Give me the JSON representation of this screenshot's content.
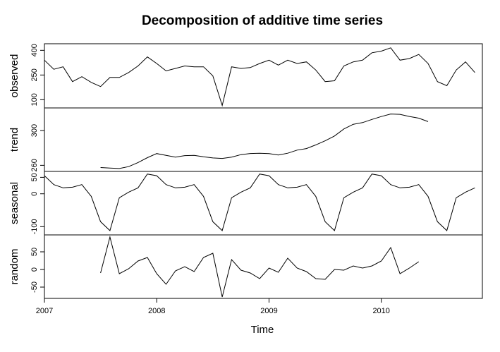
{
  "chart_data": {
    "type": "line",
    "title": "Decomposition of additive time series",
    "xlabel": "Time",
    "xlim": [
      2007,
      2010.9
    ],
    "grid": false,
    "legend": "none",
    "x_ticks": [
      2007,
      2008,
      2009,
      2010
    ],
    "x_tick_labels": [
      "2007",
      "2008",
      "2009",
      "2010"
    ],
    "x": [
      2007.0,
      2007.0833,
      2007.1667,
      2007.25,
      2007.3333,
      2007.4167,
      2007.5,
      2007.5833,
      2007.6667,
      2007.75,
      2007.8333,
      2007.9167,
      2008.0,
      2008.0833,
      2008.1667,
      2008.25,
      2008.3333,
      2008.4167,
      2008.5,
      2008.5833,
      2008.6667,
      2008.75,
      2008.8333,
      2008.9167,
      2009.0,
      2009.0833,
      2009.1667,
      2009.25,
      2009.3333,
      2009.4167,
      2009.5,
      2009.5833,
      2009.6667,
      2009.75,
      2009.8333,
      2009.9167,
      2010.0,
      2010.0833,
      2010.1667,
      2010.25,
      2010.3333,
      2010.4167,
      2010.5,
      2010.5833,
      2010.6667,
      2010.75,
      2010.8333
    ],
    "panels": [
      {
        "name": "observed",
        "ylim": [
          50,
          440
        ],
        "y_ticks": [
          100,
          250,
          400
        ],
        "y_tick_labels": [
          "100",
          "250",
          "400"
        ],
        "values": [
          340,
          285,
          300,
          210,
          240,
          205,
          180,
          235,
          235,
          265,
          305,
          360,
          320,
          275,
          290,
          305,
          300,
          300,
          245,
          65,
          300,
          290,
          295,
          320,
          340,
          310,
          340,
          320,
          330,
          280,
          210,
          215,
          305,
          330,
          340,
          385,
          395,
          415,
          340,
          350,
          375,
          320,
          210,
          185,
          280,
          330,
          265
        ]
      },
      {
        "name": "trend",
        "ylim": [
          253,
          326
        ],
        "y_ticks": [
          260,
          300
        ],
        "y_tick_labels": [
          "260",
          "300"
        ],
        "values": [
          null,
          null,
          null,
          null,
          null,
          null,
          257.5,
          256.8,
          256.3,
          258.5,
          263.2,
          268.8,
          273.5,
          271.5,
          269.5,
          271.2,
          271.5,
          269.8,
          268.5,
          267.9,
          269.5,
          272.3,
          273.6,
          273.9,
          273.4,
          271.8,
          273.9,
          277.5,
          279.3,
          283.5,
          288.2,
          293.7,
          301.8,
          307.2,
          309.1,
          312.8,
          316.1,
          319.0,
          318.6,
          316.2,
          314.2,
          310.3,
          null,
          null,
          null,
          null,
          null
        ]
      },
      {
        "name": "seasonal",
        "ylim": [
          -125,
          68
        ],
        "y_ticks": [
          -100,
          0,
          50
        ],
        "y_tick_labels": [
          "-100",
          "0",
          "50"
        ],
        "values": [
          55,
          28,
          18,
          20,
          28,
          -8,
          -85,
          -112,
          -12,
          5,
          18,
          60,
          55,
          28,
          18,
          20,
          28,
          -8,
          -85,
          -112,
          -12,
          5,
          18,
          60,
          55,
          28,
          18,
          20,
          28,
          -8,
          -85,
          -112,
          -12,
          5,
          18,
          60,
          55,
          28,
          18,
          20,
          28,
          -8,
          -85,
          -112,
          -12,
          5,
          18
        ]
      },
      {
        "name": "random",
        "ylim": [
          -82,
          98
        ],
        "y_ticks": [
          -50,
          0,
          50
        ],
        "y_tick_labels": [
          "-50",
          "0",
          "50"
        ],
        "values": [
          null,
          null,
          null,
          null,
          null,
          null,
          -10,
          92,
          -12,
          2,
          24,
          34,
          -12,
          -42,
          -4,
          8,
          -6,
          34,
          46,
          -78,
          28,
          -2,
          -10,
          -26,
          4,
          -8,
          32,
          4,
          -6,
          -26,
          -28,
          0,
          -2,
          10,
          4,
          10,
          24,
          62,
          -12,
          4,
          22,
          null,
          null,
          null,
          null,
          null,
          null
        ]
      }
    ]
  }
}
